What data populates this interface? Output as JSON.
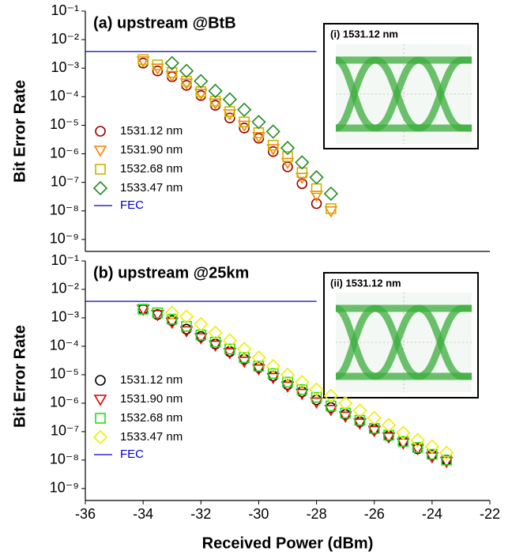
{
  "chart_data": [
    {
      "type": "scatter",
      "title": "(a) upstream @BtB",
      "ylabel": "Bit Error Rate",
      "log_y": true,
      "xlim": [
        -36,
        -22
      ],
      "ylim": [
        3.8e-10,
        0.1
      ],
      "yticks": [
        {
          "value": 0.1,
          "label": "10⁻¹"
        },
        {
          "value": 0.01,
          "label": "10⁻²"
        },
        {
          "value": 0.001,
          "label": "10⁻³"
        },
        {
          "value": 0.0001,
          "label": "10⁻⁴"
        },
        {
          "value": 1e-05,
          "label": "10⁻⁵"
        },
        {
          "value": 1e-06,
          "label": "10⁻⁶"
        },
        {
          "value": 1e-07,
          "label": "10⁻⁷"
        },
        {
          "value": 1e-08,
          "label": "10⁻⁸"
        },
        {
          "value": 1e-09,
          "label": "10⁻⁹"
        }
      ],
      "x": [
        -34,
        -33.5,
        -33,
        -32.5,
        -32,
        -31.5,
        -31,
        -30.5,
        -30,
        -29.5,
        -29,
        -28.5,
        -28,
        -27.5
      ],
      "series": [
        {
          "name": "1531.12 nm",
          "color": "#990000",
          "marker": "circle",
          "values": [
            0.0015,
            0.0008,
            0.0005,
            0.00025,
            0.00011,
            5e-05,
            1.8e-05,
            8e-06,
            3.5e-06,
            1.2e-06,
            3.5e-07,
            9e-08,
            1.8e-08,
            null
          ]
        },
        {
          "name": "1531.90 nm",
          "color": "#ff8000",
          "marker": "triangle",
          "values": [
            0.0018,
            0.001,
            0.00055,
            0.0003,
            0.00013,
            6e-05,
            2.5e-05,
            1e-05,
            4e-06,
            1.5e-06,
            5e-07,
            1.5e-07,
            3.5e-08,
            1e-08
          ]
        },
        {
          "name": "1532.68 nm",
          "color": "#c8b400",
          "marker": "square",
          "values": [
            0.002,
            0.0013,
            0.0007,
            0.00035,
            0.00015,
            7e-05,
            3e-05,
            1.3e-05,
            5.5e-06,
            2e-06,
            8e-07,
            2.2e-07,
            6e-08,
            1.2e-08
          ]
        },
        {
          "name": "1533.47 nm",
          "color": "#228b22",
          "marker": "diamond",
          "values": [
            null,
            null,
            0.0015,
            0.0008,
            0.00035,
            0.00016,
            8e-05,
            3.5e-05,
            1.3e-05,
            6e-06,
            1.6e-06,
            5e-07,
            1.5e-07,
            4e-08
          ]
        }
      ],
      "fec": {
        "name": "FEC",
        "value": 0.0038,
        "color": "#0000cc",
        "x_range": [
          -36,
          -28
        ]
      },
      "inset": {
        "title": "(i) 1531.12 nm"
      }
    },
    {
      "type": "scatter",
      "title": "(b) upstream @25km",
      "ylabel": "Bit Error Rate",
      "xlabel": "Received Power (dBm)",
      "log_y": true,
      "xlim": [
        -36,
        -22
      ],
      "ylim": [
        3.8e-10,
        0.1
      ],
      "xticks": [
        -36,
        -34,
        -32,
        -30,
        -28,
        -26,
        -24,
        -22
      ],
      "yticks": [
        {
          "value": 0.1,
          "label": "10⁻¹"
        },
        {
          "value": 0.01,
          "label": "10⁻²"
        },
        {
          "value": 0.001,
          "label": "10⁻³"
        },
        {
          "value": 0.0001,
          "label": "10⁻⁴"
        },
        {
          "value": 1e-05,
          "label": "10⁻⁵"
        },
        {
          "value": 1e-06,
          "label": "10⁻⁶"
        },
        {
          "value": 1e-07,
          "label": "10⁻⁷"
        },
        {
          "value": 1e-08,
          "label": "10⁻⁸"
        },
        {
          "value": 1e-09,
          "label": "10⁻⁹"
        }
      ],
      "x": [
        -34,
        -33.5,
        -33,
        -32.5,
        -32,
        -31.5,
        -31,
        -30.5,
        -30,
        -29.5,
        -29,
        -28.5,
        -28,
        -27.5,
        -27,
        -26.5,
        -26,
        -25.5,
        -25,
        -24.5,
        -24,
        -23.5
      ],
      "series": [
        {
          "name": "1531.12 nm",
          "color": "#000000",
          "marker": "circle",
          "values": [
            0.002,
            0.0013,
            0.0008,
            0.0004,
            0.00022,
            0.00012,
            6.5e-05,
            3.5e-05,
            1.8e-05,
            9e-06,
            4.5e-06,
            2.5e-06,
            1.3e-06,
            7e-07,
            4e-07,
            2.2e-07,
            1.2e-07,
            7e-08,
            4.5e-08,
            2.5e-08,
            1.5e-08,
            1e-08
          ]
        },
        {
          "name": "1531.90 nm",
          "color": "#e00000",
          "marker": "triangle",
          "values": [
            0.002,
            0.0013,
            0.0007,
            0.00035,
            0.0002,
            0.00011,
            6e-05,
            3e-05,
            1.6e-05,
            8e-06,
            4e-06,
            2.2e-06,
            1.1e-06,
            6e-07,
            3.5e-07,
            2e-07,
            1.1e-07,
            6.5e-08,
            4e-08,
            2.5e-08,
            1.3e-08,
            9e-09
          ]
        },
        {
          "name": "1532.68 nm",
          "color": "#22dd22",
          "marker": "square",
          "values": [
            0.002,
            0.0015,
            0.0009,
            0.0005,
            0.00025,
            0.00014,
            8e-05,
            4e-05,
            2e-05,
            1.1e-05,
            5.5e-06,
            3e-06,
            1.6e-06,
            8e-07,
            4.5e-07,
            2.5e-07,
            1.3e-07,
            7.5e-08,
            4.5e-08,
            2.8e-08,
            1.6e-08,
            1e-08
          ]
        },
        {
          "name": "1533.47 nm",
          "color": "#eeee00",
          "marker": "diamond",
          "values": [
            null,
            null,
            0.0015,
            0.0011,
            0.0006,
            0.0003,
            0.00016,
            8e-05,
            4e-05,
            2e-05,
            1e-05,
            5.5e-06,
            3e-06,
            1.8e-06,
            1e-06,
            5.5e-07,
            3e-07,
            1.7e-07,
            9e-08,
            5e-08,
            3e-08,
            1.8e-08
          ]
        }
      ],
      "fec": {
        "name": "FEC",
        "value": 0.0038,
        "color": "#0000cc",
        "x_range": [
          -36,
          -28
        ]
      },
      "inset": {
        "title": "(ii) 1531.12 nm"
      }
    }
  ]
}
